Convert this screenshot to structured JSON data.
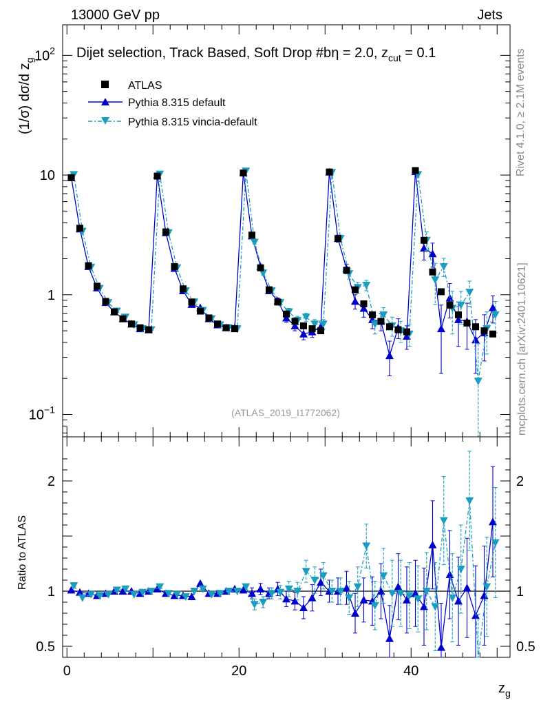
{
  "header": {
    "left": "13000 GeV pp",
    "right": "Jets"
  },
  "plot": {
    "title": "Dijet selection, Track Based, Soft Drop #b",
    "title_suffix": "η = 2.0, z",
    "title_sub": "cut",
    "title_end": " = 0.1",
    "ylabel": "(1/σ) dσ/d z",
    "ylabel_sub": "g",
    "xlabel": "z",
    "xlabel_sub": "g",
    "analysis_ref": "(ATLAS_2019_I1772062)",
    "ratio_ylabel": "Ratio to ATLAS"
  },
  "side_text": {
    "rivet": "Rivet 4.1.0, ≥ 2.1M events",
    "mcplots": "mcplots.cern.ch [arXiv:2401.10621]"
  },
  "legend": [
    {
      "label": "ATLAS",
      "color": "#000000",
      "marker": "square"
    },
    {
      "label": "Pythia 8.315 default",
      "color": "#0000cc",
      "marker": "triangle-up"
    },
    {
      "label": "Pythia 8.315 vincia-default",
      "color": "#1a9ebf",
      "marker": "triangle-down"
    }
  ],
  "chart_data": {
    "type": "line",
    "title": "Dijet selection, Track Based, Soft Drop #bη = 2.0, z_cut = 0.1",
    "xlabel": "z_g",
    "ylabel": "(1/σ) dσ/d z_g",
    "xlim": [
      -0.5,
      51.5
    ],
    "ylim": [
      0.065,
      180
    ],
    "yscale": "log",
    "ratio_ylim": [
      0.4,
      2.4
    ],
    "x_ticks": [
      0,
      20,
      40
    ],
    "y_ticks": [
      {
        "v": 0.1,
        "label": "10^-1"
      },
      {
        "v": 1,
        "label": "1"
      },
      {
        "v": 10,
        "label": "10"
      },
      {
        "v": 100,
        "label": "10^2"
      }
    ],
    "ratio_ticks": [
      {
        "v": 0.5,
        "label": "0.5"
      },
      {
        "v": 1,
        "label": "1"
      },
      {
        "v": 2,
        "label": "2"
      }
    ],
    "x": [
      0.5,
      1.5,
      2.5,
      3.5,
      4.5,
      5.5,
      6.5,
      7.5,
      8.5,
      9.5,
      10.5,
      11.5,
      12.5,
      13.5,
      14.5,
      15.5,
      16.5,
      17.5,
      18.5,
      19.5,
      20.5,
      21.5,
      22.5,
      23.5,
      24.5,
      25.5,
      26.5,
      27.5,
      28.5,
      29.5,
      30.5,
      31.5,
      32.5,
      33.5,
      34.5,
      35.5,
      36.5,
      37.5,
      38.5,
      39.5,
      40.5,
      41.5,
      42.5,
      43.5,
      44.5,
      45.5,
      46.5,
      47.5,
      48.5,
      49.5
    ],
    "series": [
      {
        "name": "ATLAS",
        "values": [
          9.5,
          3.6,
          1.75,
          1.18,
          0.88,
          0.72,
          0.63,
          0.57,
          0.53,
          0.51,
          9.8,
          3.35,
          1.72,
          1.12,
          0.87,
          0.73,
          0.64,
          0.57,
          0.53,
          0.52,
          10.4,
          3.15,
          1.68,
          1.1,
          0.87,
          0.69,
          0.6,
          0.55,
          0.52,
          0.5,
          10.6,
          2.95,
          1.6,
          1.1,
          0.84,
          0.68,
          0.6,
          0.54,
          0.51,
          0.49,
          10.9,
          2.85,
          1.55,
          1.06,
          0.82,
          0.68,
          0.58,
          0.54,
          0.5,
          0.47
        ]
      },
      {
        "name": "Pythia 8.315 default",
        "values": [
          9.6,
          3.55,
          1.72,
          1.14,
          0.86,
          0.72,
          0.63,
          0.57,
          0.52,
          0.51,
          10.0,
          3.3,
          1.66,
          1.08,
          0.83,
          0.78,
          0.63,
          0.56,
          0.53,
          0.53,
          10.5,
          3.1,
          1.72,
          1.08,
          0.89,
          0.64,
          0.55,
          0.47,
          0.49,
          0.54,
          10.6,
          2.95,
          1.65,
          0.88,
          0.77,
          0.62,
          0.6,
          0.31,
          0.53,
          0.45,
          10.7,
          2.45,
          2.2,
          0.52,
          0.94,
          0.62,
          0.6,
          0.42,
          0.48,
          0.78
        ],
        "errors": [
          0.1,
          0.05,
          0.03,
          0.02,
          0.02,
          0.02,
          0.02,
          0.02,
          0.02,
          0.02,
          0.1,
          0.05,
          0.03,
          0.02,
          0.02,
          0.02,
          0.02,
          0.02,
          0.02,
          0.02,
          0.15,
          0.1,
          0.06,
          0.05,
          0.05,
          0.05,
          0.05,
          0.05,
          0.05,
          0.05,
          0.3,
          0.2,
          0.15,
          0.12,
          0.12,
          0.1,
          0.1,
          0.1,
          0.1,
          0.1,
          0.5,
          0.5,
          0.5,
          0.3,
          0.3,
          0.25,
          0.25,
          0.2,
          0.2,
          0.2
        ]
      },
      {
        "name": "Pythia 8.315 vincia-default",
        "values": [
          10.1,
          3.4,
          1.7,
          1.13,
          0.86,
          0.73,
          0.65,
          0.56,
          0.52,
          0.51,
          10.2,
          3.3,
          1.68,
          1.08,
          0.87,
          0.74,
          0.63,
          0.56,
          0.53,
          0.52,
          10.8,
          2.75,
          1.52,
          1.08,
          0.86,
          0.72,
          0.61,
          0.65,
          0.57,
          0.57,
          10.5,
          2.95,
          1.5,
          1.15,
          1.2,
          0.57,
          0.68,
          0.55,
          0.5,
          0.47,
          10.1,
          2.85,
          1.33,
          1.72,
          0.77,
          0.82,
          1.05,
          0.19,
          0.52,
          0.68
        ],
        "errors": [
          0.1,
          0.05,
          0.03,
          0.02,
          0.02,
          0.02,
          0.02,
          0.02,
          0.02,
          0.02,
          0.1,
          0.05,
          0.03,
          0.02,
          0.02,
          0.02,
          0.02,
          0.02,
          0.02,
          0.02,
          0.15,
          0.1,
          0.06,
          0.05,
          0.05,
          0.05,
          0.05,
          0.05,
          0.05,
          0.05,
          0.3,
          0.2,
          0.15,
          0.12,
          0.12,
          0.1,
          0.1,
          0.1,
          0.1,
          0.1,
          0.5,
          0.5,
          0.5,
          0.3,
          0.3,
          0.25,
          0.25,
          0.2,
          0.2,
          0.2
        ]
      }
    ],
    "ratio_series": [
      {
        "name": "Pythia 8.315 default",
        "values": [
          1.01,
          0.99,
          0.98,
          0.96,
          0.98,
          1.0,
          1.0,
          1.0,
          0.98,
          1.0,
          1.02,
          0.98,
          0.96,
          0.96,
          0.95,
          1.07,
          0.98,
          0.98,
          1.0,
          1.02,
          1.01,
          0.98,
          1.02,
          0.98,
          1.02,
          0.93,
          0.91,
          0.85,
          0.94,
          1.08,
          1.0,
          1.0,
          1.03,
          0.8,
          0.92,
          0.91,
          1.0,
          0.57,
          1.04,
          0.92,
          0.98,
          0.86,
          1.42,
          0.49,
          1.15,
          0.91,
          1.03,
          0.78,
          0.96,
          1.63
        ],
        "errors": [
          0.02,
          0.02,
          0.02,
          0.02,
          0.02,
          0.02,
          0.02,
          0.02,
          0.02,
          0.02,
          0.02,
          0.02,
          0.02,
          0.02,
          0.02,
          0.03,
          0.03,
          0.03,
          0.03,
          0.03,
          0.03,
          0.05,
          0.05,
          0.05,
          0.06,
          0.07,
          0.08,
          0.1,
          0.12,
          0.12,
          0.1,
          0.12,
          0.15,
          0.18,
          0.2,
          0.22,
          0.25,
          0.3,
          0.3,
          0.3,
          0.3,
          0.35,
          0.4,
          0.4,
          0.4,
          0.4,
          0.45,
          0.45,
          0.45,
          0.5
        ]
      },
      {
        "name": "Pythia 8.315 vincia-default",
        "values": [
          1.05,
          0.94,
          0.97,
          0.96,
          0.97,
          1.01,
          1.02,
          0.97,
          0.99,
          1.0,
          1.04,
          0.98,
          0.97,
          0.95,
          1.0,
          1.02,
          0.97,
          0.98,
          1.0,
          1.0,
          1.04,
          0.88,
          0.9,
          0.98,
          0.99,
          1.02,
          1.0,
          1.18,
          1.1,
          1.14,
          1.0,
          1.0,
          0.94,
          1.04,
          1.41,
          0.87,
          1.14,
          0.98,
          0.98,
          0.96,
          0.93,
          1.0,
          0.86,
          1.64,
          0.94,
          1.2,
          1.82,
          0.34,
          1.04,
          1.44
        ],
        "errors": [
          0.02,
          0.02,
          0.02,
          0.02,
          0.02,
          0.02,
          0.02,
          0.02,
          0.02,
          0.02,
          0.02,
          0.02,
          0.02,
          0.02,
          0.02,
          0.03,
          0.03,
          0.03,
          0.03,
          0.03,
          0.03,
          0.05,
          0.05,
          0.05,
          0.06,
          0.07,
          0.08,
          0.1,
          0.12,
          0.12,
          0.1,
          0.12,
          0.15,
          0.18,
          0.2,
          0.22,
          0.25,
          0.3,
          0.3,
          0.3,
          0.3,
          0.35,
          0.4,
          0.4,
          0.4,
          0.4,
          0.45,
          0.45,
          0.45,
          0.5
        ]
      }
    ]
  }
}
